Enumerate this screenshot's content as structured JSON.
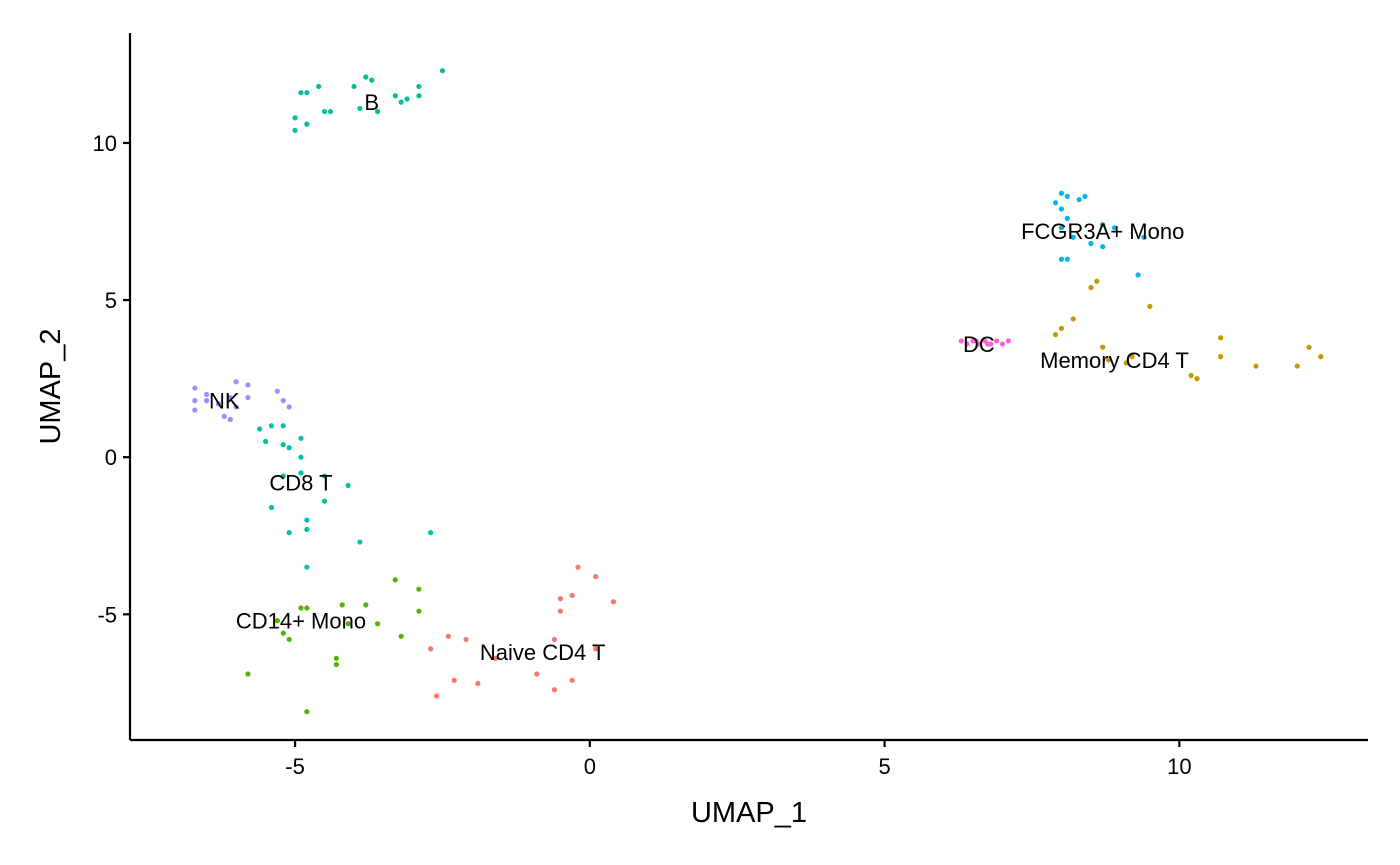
{
  "chart_data": {
    "type": "scatter",
    "title": "",
    "xlabel": "UMAP_1",
    "ylabel": "UMAP_2",
    "xlim": [
      -7.8,
      13.2
    ],
    "ylim": [
      -9.0,
      13.5
    ],
    "x_ticks": [
      -5,
      0,
      5,
      10
    ],
    "y_ticks": [
      -5,
      0,
      5,
      10
    ],
    "x_tick_labels": [
      "-5",
      "0",
      "5",
      "10"
    ],
    "y_tick_labels": [
      "-5",
      "0",
      "5",
      "10"
    ],
    "grid": false,
    "legend": "none",
    "series": [
      {
        "name": "Naive CD4 T",
        "color": "#F8766D",
        "label_pos": [
          -0.8,
          -6.2
        ],
        "points": [
          [
            -0.2,
            -3.5
          ],
          [
            0.1,
            -3.8
          ],
          [
            -0.5,
            -4.5
          ],
          [
            -0.3,
            -4.4
          ],
          [
            0.4,
            -4.6
          ],
          [
            -0.5,
            -4.9
          ],
          [
            -2.4,
            -5.7
          ],
          [
            -2.1,
            -5.8
          ],
          [
            -0.6,
            -5.8
          ],
          [
            -2.7,
            -6.1
          ],
          [
            -1.6,
            -6.4
          ],
          [
            0.1,
            -6.1
          ],
          [
            -0.9,
            -6.9
          ],
          [
            -2.3,
            -7.1
          ],
          [
            -1.9,
            -7.2
          ],
          [
            -0.3,
            -7.1
          ],
          [
            -0.6,
            -7.4
          ],
          [
            -2.6,
            -7.6
          ]
        ]
      },
      {
        "name": "Memory CD4 T",
        "color": "#C49A00",
        "label_pos": [
          8.9,
          3.1
        ],
        "points": [
          [
            8.6,
            5.6
          ],
          [
            8.5,
            5.4
          ],
          [
            9.5,
            4.8
          ],
          [
            8.2,
            4.4
          ],
          [
            8.0,
            4.1
          ],
          [
            7.9,
            3.9
          ],
          [
            10.7,
            3.8
          ],
          [
            12.2,
            3.5
          ],
          [
            12.4,
            3.2
          ],
          [
            8.7,
            3.5
          ],
          [
            9.2,
            3.2
          ],
          [
            8.8,
            3.1
          ],
          [
            10.7,
            3.2
          ],
          [
            9.1,
            3.0
          ],
          [
            11.3,
            2.9
          ],
          [
            12.0,
            2.9
          ],
          [
            10.2,
            2.6
          ],
          [
            10.3,
            2.5
          ]
        ]
      },
      {
        "name": "CD14+ Mono",
        "color": "#53B400",
        "label_pos": [
          -4.9,
          -5.2
        ],
        "points": [
          [
            -3.3,
            -3.9
          ],
          [
            -2.9,
            -4.2
          ],
          [
            -4.2,
            -4.7
          ],
          [
            -3.8,
            -4.7
          ],
          [
            -4.9,
            -4.8
          ],
          [
            -4.8,
            -4.8
          ],
          [
            -2.9,
            -4.9
          ],
          [
            -5.3,
            -5.2
          ],
          [
            -4.1,
            -5.3
          ],
          [
            -3.6,
            -5.3
          ],
          [
            -5.2,
            -5.6
          ],
          [
            -3.2,
            -5.7
          ],
          [
            -5.1,
            -5.8
          ],
          [
            -4.3,
            -6.4
          ],
          [
            -4.3,
            -6.6
          ],
          [
            -5.8,
            -6.9
          ],
          [
            -4.8,
            -8.1
          ]
        ]
      },
      {
        "name": "B",
        "color": "#00C094",
        "label_pos": [
          -3.7,
          11.3
        ],
        "points": [
          [
            -2.5,
            12.3
          ],
          [
            -3.8,
            12.1
          ],
          [
            -3.7,
            12.0
          ],
          [
            -4.0,
            11.8
          ],
          [
            -4.6,
            11.8
          ],
          [
            -2.9,
            11.8
          ],
          [
            -4.9,
            11.6
          ],
          [
            -4.8,
            11.6
          ],
          [
            -3.3,
            11.5
          ],
          [
            -2.9,
            11.5
          ],
          [
            -3.1,
            11.4
          ],
          [
            -3.2,
            11.3
          ],
          [
            -3.9,
            11.1
          ],
          [
            -3.6,
            11.0
          ],
          [
            -4.5,
            11.0
          ],
          [
            -4.4,
            11.0
          ],
          [
            -5.0,
            10.8
          ],
          [
            -4.8,
            10.6
          ],
          [
            -5.0,
            10.4
          ]
        ]
      },
      {
        "name": "FCGR3A+ Mono",
        "color": "#00B6EB",
        "label_pos": [
          8.7,
          7.2
        ],
        "points": [
          [
            8.0,
            8.4
          ],
          [
            8.1,
            8.3
          ],
          [
            8.4,
            8.3
          ],
          [
            8.3,
            8.2
          ],
          [
            7.9,
            8.1
          ],
          [
            8.0,
            7.9
          ],
          [
            8.1,
            7.6
          ],
          [
            8.0,
            7.3
          ],
          [
            8.7,
            7.4
          ],
          [
            8.9,
            7.3
          ],
          [
            9.4,
            7.0
          ],
          [
            8.2,
            7.0
          ],
          [
            8.5,
            6.8
          ],
          [
            8.7,
            6.7
          ],
          [
            8.0,
            6.3
          ],
          [
            8.1,
            6.3
          ],
          [
            9.3,
            5.8
          ]
        ]
      },
      {
        "name": "DC",
        "color": "#FB61D7",
        "label_pos": [
          6.6,
          3.6
        ],
        "points": [
          [
            6.3,
            3.7
          ],
          [
            6.4,
            3.6
          ],
          [
            6.5,
            3.7
          ],
          [
            6.6,
            3.6
          ],
          [
            6.7,
            3.7
          ],
          [
            6.8,
            3.6
          ],
          [
            6.9,
            3.7
          ],
          [
            7.0,
            3.6
          ],
          [
            6.55,
            3.7
          ],
          [
            6.75,
            3.6
          ],
          [
            7.1,
            3.7
          ]
        ]
      },
      {
        "name": "NK",
        "color": "#A58AFF",
        "label_pos": [
          -6.2,
          1.8
        ],
        "points": [
          [
            -6.0,
            2.4
          ],
          [
            -5.8,
            2.3
          ],
          [
            -6.7,
            2.2
          ],
          [
            -5.3,
            2.1
          ],
          [
            -6.5,
            2.0
          ],
          [
            -6.1,
            1.9
          ],
          [
            -5.8,
            1.9
          ],
          [
            -6.7,
            1.8
          ],
          [
            -6.5,
            1.8
          ],
          [
            -5.2,
            1.8
          ],
          [
            -6.3,
            1.7
          ],
          [
            -6.0,
            1.6
          ],
          [
            -5.1,
            1.6
          ],
          [
            -6.7,
            1.5
          ],
          [
            -6.2,
            1.3
          ],
          [
            -6.1,
            1.2
          ]
        ]
      },
      {
        "name": "CD8 T",
        "color": "#00C1AA",
        "label_pos": [
          -4.9,
          -0.8
        ],
        "points": [
          [
            -5.4,
            1.0
          ],
          [
            -5.2,
            1.0
          ],
          [
            -5.6,
            0.9
          ],
          [
            -4.9,
            0.6
          ],
          [
            -5.5,
            0.5
          ],
          [
            -5.2,
            0.4
          ],
          [
            -5.1,
            0.3
          ],
          [
            -4.9,
            0.0
          ],
          [
            -5.2,
            -0.6
          ],
          [
            -4.9,
            -0.5
          ],
          [
            -4.5,
            -0.6
          ],
          [
            -4.1,
            -0.9
          ],
          [
            -5.4,
            -1.6
          ],
          [
            -4.5,
            -1.4
          ],
          [
            -4.8,
            -2.0
          ],
          [
            -5.1,
            -2.4
          ],
          [
            -4.8,
            -2.3
          ],
          [
            -2.7,
            -2.4
          ],
          [
            -3.9,
            -2.7
          ],
          [
            -4.8,
            -3.5
          ]
        ]
      }
    ]
  }
}
